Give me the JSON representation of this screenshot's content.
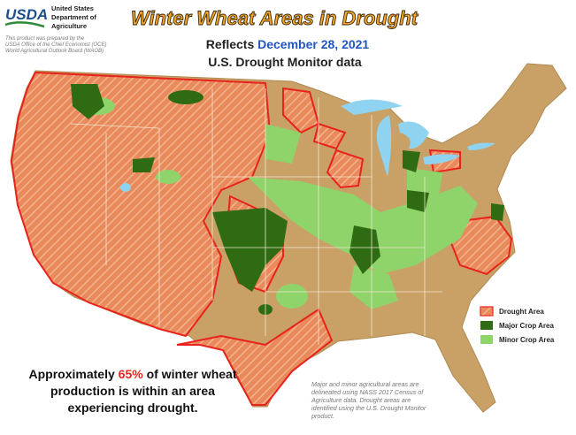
{
  "header": {
    "logo": "USDA",
    "agency": [
      "United States",
      "Department of",
      "Agriculture"
    ],
    "credit": [
      "This product was prepared by the",
      "USDA Office of the Chief Economist (OCE)",
      "World Agricultural Outlook Board (WAOB)"
    ]
  },
  "title": "Winter Wheat Areas in Drought",
  "subtitle": {
    "prefix": "Reflects",
    "date": "December 28, 2021",
    "source": "U.S. Drought Monitor data"
  },
  "legend": [
    "Drought Area",
    "Major Crop Area",
    "Minor Crop Area"
  ],
  "statement": {
    "lines": [
      [
        "Approximately",
        "65%",
        "of winter wheat"
      ],
      "production is within an area",
      "experiencing drought."
    ]
  },
  "note": [
    "Major and minor agricultural areas are",
    "delineated using NASS 2017 Census of",
    "Agriculture data.  Drought areas are",
    "identified using the U.S. Drought Monitor",
    "product."
  ]
}
